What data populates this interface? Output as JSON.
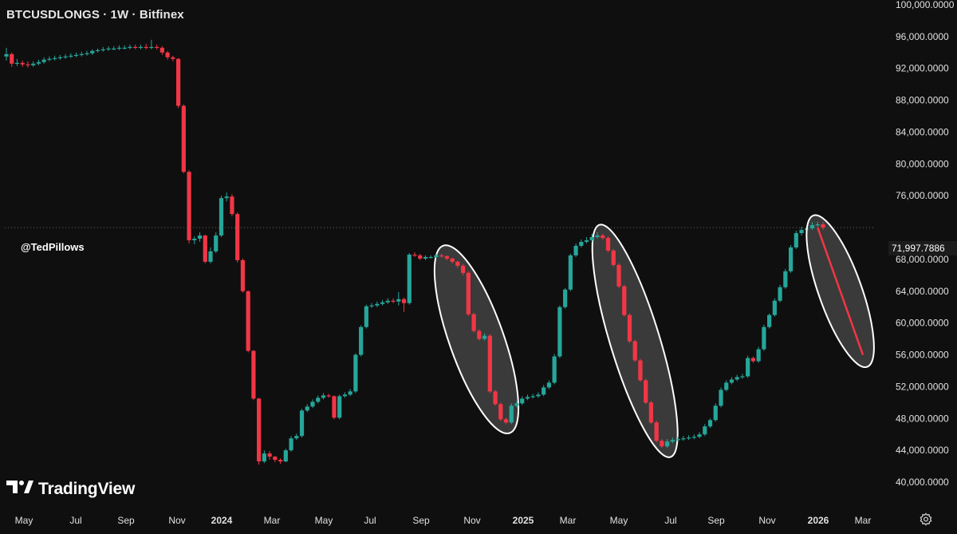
{
  "header": {
    "title": "BTCUSDLONGS · 1W · Bitfinex"
  },
  "watermark": "@TedPillows",
  "branding": {
    "logo_text": "TradingView"
  },
  "price_label": "71,997.7886",
  "colors": {
    "up": "#26a69a",
    "down": "#f23645",
    "ellipse_fill": "#4a4a4a",
    "ellipse_stroke": "#ffffff",
    "background": "#0f0f0f"
  },
  "icons": {
    "settings": "gear-icon",
    "logo": "tradingview-logo-icon"
  },
  "chart_data": {
    "type": "candlestick",
    "title": "BTCUSDLONGS · 1W · Bitfinex",
    "ylim": [
      38000,
      100000
    ],
    "y_ticks": [
      "40,000.0000",
      "44,000.0000",
      "48,000.0000",
      "52,000.0000",
      "56,000.0000",
      "60,000.0000",
      "64,000.0000",
      "68,000.0000",
      "72,000.0000",
      "76,000.0000",
      "80,000.0000",
      "84,000.0000",
      "88,000.0000",
      "92,000.0000",
      "96,000.0000",
      "100,000.0000"
    ],
    "x_ticks": [
      "May",
      "Jul",
      "Sep",
      "Nov",
      "2024",
      "Mar",
      "May",
      "Jul",
      "Sep",
      "Nov",
      "2025",
      "Mar",
      "May",
      "Jul",
      "Sep",
      "Nov",
      "2026",
      "Mar"
    ],
    "x_ticks_bold": [
      "2024",
      "2025",
      "2026"
    ],
    "last_price": 71997.7886,
    "candles": [
      {
        "o": 93500,
        "c": 93800,
        "h": 94600,
        "l": 93000
      },
      {
        "o": 93800,
        "c": 92600,
        "h": 94000,
        "l": 92200
      },
      {
        "o": 92600,
        "c": 92700,
        "h": 93200,
        "l": 92300
      },
      {
        "o": 92700,
        "c": 92500,
        "h": 93000,
        "l": 92200
      },
      {
        "o": 92500,
        "c": 92400,
        "h": 92900,
        "l": 92100
      },
      {
        "o": 92400,
        "c": 92600,
        "h": 92900,
        "l": 92200
      },
      {
        "o": 92600,
        "c": 92800,
        "h": 93100,
        "l": 92400
      },
      {
        "o": 92800,
        "c": 93100,
        "h": 93400,
        "l": 92600
      },
      {
        "o": 93100,
        "c": 93200,
        "h": 93500,
        "l": 92900
      },
      {
        "o": 93200,
        "c": 93300,
        "h": 93600,
        "l": 93000
      },
      {
        "o": 93300,
        "c": 93400,
        "h": 93700,
        "l": 93100
      },
      {
        "o": 93400,
        "c": 93500,
        "h": 93800,
        "l": 93200
      },
      {
        "o": 93500,
        "c": 93600,
        "h": 93900,
        "l": 93300
      },
      {
        "o": 93600,
        "c": 93700,
        "h": 94000,
        "l": 93400
      },
      {
        "o": 93700,
        "c": 93800,
        "h": 94100,
        "l": 93500
      },
      {
        "o": 93800,
        "c": 93900,
        "h": 94200,
        "l": 93600
      },
      {
        "o": 93900,
        "c": 94200,
        "h": 94400,
        "l": 93700
      },
      {
        "o": 94200,
        "c": 94300,
        "h": 94500,
        "l": 94000
      },
      {
        "o": 94300,
        "c": 94400,
        "h": 94700,
        "l": 94100
      },
      {
        "o": 94400,
        "c": 94500,
        "h": 94800,
        "l": 94200
      },
      {
        "o": 94500,
        "c": 94500,
        "h": 94800,
        "l": 94300
      },
      {
        "o": 94500,
        "c": 94600,
        "h": 94900,
        "l": 94300
      },
      {
        "o": 94600,
        "c": 94600,
        "h": 94900,
        "l": 94400
      },
      {
        "o": 94600,
        "c": 94700,
        "h": 95000,
        "l": 94400
      },
      {
        "o": 94700,
        "c": 94600,
        "h": 95000,
        "l": 94400
      },
      {
        "o": 94600,
        "c": 94700,
        "h": 95000,
        "l": 94400
      },
      {
        "o": 94700,
        "c": 94600,
        "h": 95100,
        "l": 94400
      },
      {
        "o": 94600,
        "c": 94700,
        "h": 95600,
        "l": 94400
      },
      {
        "o": 94700,
        "c": 94600,
        "h": 95000,
        "l": 94400
      },
      {
        "o": 94600,
        "c": 94000,
        "h": 94800,
        "l": 93700
      },
      {
        "o": 94000,
        "c": 93400,
        "h": 94200,
        "l": 93100
      },
      {
        "o": 93400,
        "c": 93200,
        "h": 93600,
        "l": 92900
      },
      {
        "o": 93200,
        "c": 87300,
        "h": 93300,
        "l": 87000
      },
      {
        "o": 87300,
        "c": 79000,
        "h": 87500,
        "l": 78800
      },
      {
        "o": 79000,
        "c": 70400,
        "h": 79200,
        "l": 70000
      },
      {
        "o": 70400,
        "c": 70600,
        "h": 70900,
        "l": 69900
      },
      {
        "o": 70600,
        "c": 71000,
        "h": 71400,
        "l": 70200
      },
      {
        "o": 71000,
        "c": 67700,
        "h": 71100,
        "l": 67500
      },
      {
        "o": 67700,
        "c": 69000,
        "h": 69500,
        "l": 67500
      },
      {
        "o": 69000,
        "c": 71000,
        "h": 71400,
        "l": 68800
      },
      {
        "o": 71000,
        "c": 75700,
        "h": 76000,
        "l": 70800
      },
      {
        "o": 75700,
        "c": 75900,
        "h": 76400,
        "l": 75300
      },
      {
        "o": 75900,
        "c": 73700,
        "h": 76200,
        "l": 73400
      },
      {
        "o": 73700,
        "c": 67900,
        "h": 73900,
        "l": 67600
      },
      {
        "o": 67900,
        "c": 64000,
        "h": 68100,
        "l": 63800
      },
      {
        "o": 64000,
        "c": 56500,
        "h": 64100,
        "l": 56300
      },
      {
        "o": 56500,
        "c": 50500,
        "h": 56600,
        "l": 50300
      },
      {
        "o": 50500,
        "c": 42600,
        "h": 50600,
        "l": 42200
      },
      {
        "o": 42600,
        "c": 43600,
        "h": 44000,
        "l": 42400
      },
      {
        "o": 43600,
        "c": 43200,
        "h": 43900,
        "l": 42800
      },
      {
        "o": 43200,
        "c": 42800,
        "h": 43300,
        "l": 42500
      },
      {
        "o": 42800,
        "c": 42600,
        "h": 43000,
        "l": 42300
      },
      {
        "o": 42600,
        "c": 44000,
        "h": 44200,
        "l": 42500
      },
      {
        "o": 44000,
        "c": 45500,
        "h": 45800,
        "l": 43800
      },
      {
        "o": 45500,
        "c": 45800,
        "h": 46100,
        "l": 45300
      },
      {
        "o": 45800,
        "c": 49000,
        "h": 49200,
        "l": 45600
      },
      {
        "o": 49000,
        "c": 49500,
        "h": 49800,
        "l": 48800
      },
      {
        "o": 49500,
        "c": 50100,
        "h": 50400,
        "l": 49300
      },
      {
        "o": 50100,
        "c": 50600,
        "h": 50900,
        "l": 49900
      },
      {
        "o": 50600,
        "c": 50900,
        "h": 51200,
        "l": 50400
      },
      {
        "o": 50900,
        "c": 50800,
        "h": 51100,
        "l": 50600
      },
      {
        "o": 50800,
        "c": 48100,
        "h": 50900,
        "l": 47900
      },
      {
        "o": 48100,
        "c": 50800,
        "h": 51000,
        "l": 47900
      },
      {
        "o": 50800,
        "c": 51000,
        "h": 51300,
        "l": 50600
      },
      {
        "o": 51000,
        "c": 51400,
        "h": 51700,
        "l": 50800
      },
      {
        "o": 51400,
        "c": 56000,
        "h": 56200,
        "l": 51200
      },
      {
        "o": 56000,
        "c": 59500,
        "h": 59700,
        "l": 55800
      },
      {
        "o": 59500,
        "c": 62100,
        "h": 62300,
        "l": 59300
      },
      {
        "o": 62100,
        "c": 62200,
        "h": 62500,
        "l": 61900
      },
      {
        "o": 62200,
        "c": 62400,
        "h": 62700,
        "l": 62000
      },
      {
        "o": 62400,
        "c": 62600,
        "h": 62900,
        "l": 62200
      },
      {
        "o": 62600,
        "c": 62800,
        "h": 63100,
        "l": 62400
      },
      {
        "o": 62800,
        "c": 62700,
        "h": 63100,
        "l": 62500
      },
      {
        "o": 62700,
        "c": 63000,
        "h": 63900,
        "l": 62200
      },
      {
        "o": 63000,
        "c": 62500,
        "h": 63200,
        "l": 61400
      },
      {
        "o": 62500,
        "c": 68600,
        "h": 68800,
        "l": 62300
      },
      {
        "o": 68600,
        "c": 68500,
        "h": 68900,
        "l": 68300
      },
      {
        "o": 68500,
        "c": 68100,
        "h": 68700,
        "l": 67900
      },
      {
        "o": 68100,
        "c": 68300,
        "h": 68500,
        "l": 67900
      },
      {
        "o": 68300,
        "c": 68300,
        "h": 68500,
        "l": 68100
      },
      {
        "o": 68300,
        "c": 68500,
        "h": 68700,
        "l": 68100
      },
      {
        "o": 68500,
        "c": 68400,
        "h": 68700,
        "l": 68200
      },
      {
        "o": 68400,
        "c": 68100,
        "h": 68500,
        "l": 67900
      },
      {
        "o": 68100,
        "c": 67700,
        "h": 68200,
        "l": 67500
      },
      {
        "o": 67700,
        "c": 67200,
        "h": 67800,
        "l": 66900
      },
      {
        "o": 67200,
        "c": 66300,
        "h": 67400,
        "l": 66000
      },
      {
        "o": 66300,
        "c": 61100,
        "h": 66500,
        "l": 60900
      },
      {
        "o": 61100,
        "c": 59000,
        "h": 61300,
        "l": 58800
      },
      {
        "o": 59000,
        "c": 58000,
        "h": 59200,
        "l": 57800
      },
      {
        "o": 58000,
        "c": 58400,
        "h": 58700,
        "l": 57800
      },
      {
        "o": 58400,
        "c": 51400,
        "h": 58600,
        "l": 51200
      },
      {
        "o": 51400,
        "c": 49800,
        "h": 51600,
        "l": 49600
      },
      {
        "o": 49800,
        "c": 47900,
        "h": 50000,
        "l": 47700
      },
      {
        "o": 47900,
        "c": 47500,
        "h": 48100,
        "l": 47300
      },
      {
        "o": 47500,
        "c": 49600,
        "h": 49900,
        "l": 47300
      },
      {
        "o": 49600,
        "c": 49900,
        "h": 50200,
        "l": 49400
      },
      {
        "o": 49900,
        "c": 50500,
        "h": 50800,
        "l": 49700
      },
      {
        "o": 50500,
        "c": 50700,
        "h": 51000,
        "l": 50300
      },
      {
        "o": 50700,
        "c": 50800,
        "h": 51100,
        "l": 50500
      },
      {
        "o": 50800,
        "c": 51000,
        "h": 51300,
        "l": 50600
      },
      {
        "o": 51000,
        "c": 51900,
        "h": 52200,
        "l": 50800
      },
      {
        "o": 51900,
        "c": 52500,
        "h": 52800,
        "l": 51700
      },
      {
        "o": 52500,
        "c": 55800,
        "h": 56100,
        "l": 52300
      },
      {
        "o": 55800,
        "c": 62000,
        "h": 62200,
        "l": 55600
      },
      {
        "o": 62000,
        "c": 64200,
        "h": 64400,
        "l": 61800
      },
      {
        "o": 64200,
        "c": 68500,
        "h": 68700,
        "l": 64000
      },
      {
        "o": 68500,
        "c": 69700,
        "h": 70000,
        "l": 68300
      },
      {
        "o": 69700,
        "c": 70200,
        "h": 70500,
        "l": 69500
      },
      {
        "o": 70200,
        "c": 70400,
        "h": 70800,
        "l": 70000
      },
      {
        "o": 70400,
        "c": 70800,
        "h": 71200,
        "l": 70200
      },
      {
        "o": 70800,
        "c": 71000,
        "h": 71400,
        "l": 70600
      },
      {
        "o": 71000,
        "c": 70700,
        "h": 71200,
        "l": 70500
      },
      {
        "o": 70700,
        "c": 69100,
        "h": 70900,
        "l": 68900
      },
      {
        "o": 69100,
        "c": 67300,
        "h": 69300,
        "l": 67100
      },
      {
        "o": 67300,
        "c": 64600,
        "h": 67500,
        "l": 64400
      },
      {
        "o": 64600,
        "c": 61000,
        "h": 64800,
        "l": 60800
      },
      {
        "o": 61000,
        "c": 57700,
        "h": 61200,
        "l": 57500
      },
      {
        "o": 57700,
        "c": 55300,
        "h": 57900,
        "l": 55100
      },
      {
        "o": 55300,
        "c": 52800,
        "h": 55500,
        "l": 52600
      },
      {
        "o": 52800,
        "c": 50000,
        "h": 53000,
        "l": 49800
      },
      {
        "o": 50000,
        "c": 47500,
        "h": 50200,
        "l": 47300
      },
      {
        "o": 47500,
        "c": 45200,
        "h": 47700,
        "l": 45000
      },
      {
        "o": 45200,
        "c": 44500,
        "h": 45400,
        "l": 44300
      },
      {
        "o": 44500,
        "c": 45100,
        "h": 45400,
        "l": 44300
      },
      {
        "o": 45100,
        "c": 45300,
        "h": 45600,
        "l": 44900
      },
      {
        "o": 45300,
        "c": 45400,
        "h": 45700,
        "l": 45100
      },
      {
        "o": 45400,
        "c": 45500,
        "h": 45800,
        "l": 45200
      },
      {
        "o": 45500,
        "c": 45600,
        "h": 45900,
        "l": 45300
      },
      {
        "o": 45600,
        "c": 45700,
        "h": 46000,
        "l": 45400
      },
      {
        "o": 45700,
        "c": 46000,
        "h": 46300,
        "l": 45500
      },
      {
        "o": 46000,
        "c": 47000,
        "h": 47300,
        "l": 45800
      },
      {
        "o": 47000,
        "c": 47800,
        "h": 48000,
        "l": 46800
      },
      {
        "o": 47800,
        "c": 49600,
        "h": 49900,
        "l": 47600
      },
      {
        "o": 49600,
        "c": 51600,
        "h": 51900,
        "l": 49400
      },
      {
        "o": 51600,
        "c": 52500,
        "h": 52800,
        "l": 51400
      },
      {
        "o": 52500,
        "c": 52900,
        "h": 53200,
        "l": 52300
      },
      {
        "o": 52900,
        "c": 53200,
        "h": 53500,
        "l": 52700
      },
      {
        "o": 53200,
        "c": 53300,
        "h": 53600,
        "l": 53000
      },
      {
        "o": 53300,
        "c": 55600,
        "h": 55900,
        "l": 53100
      },
      {
        "o": 55600,
        "c": 55200,
        "h": 55800,
        "l": 55000
      },
      {
        "o": 55200,
        "c": 56700,
        "h": 57000,
        "l": 55000
      },
      {
        "o": 56700,
        "c": 59500,
        "h": 59800,
        "l": 56500
      },
      {
        "o": 59500,
        "c": 61000,
        "h": 61200,
        "l": 59300
      },
      {
        "o": 61000,
        "c": 62800,
        "h": 63100,
        "l": 60800
      },
      {
        "o": 62800,
        "c": 64500,
        "h": 64800,
        "l": 62600
      },
      {
        "o": 64500,
        "c": 66500,
        "h": 66800,
        "l": 64300
      },
      {
        "o": 66500,
        "c": 69500,
        "h": 69800,
        "l": 66300
      },
      {
        "o": 69500,
        "c": 71300,
        "h": 71600,
        "l": 69300
      },
      {
        "o": 71300,
        "c": 71700,
        "h": 72100,
        "l": 71000
      },
      {
        "o": 71700,
        "c": 71900,
        "h": 72300,
        "l": 71400
      },
      {
        "o": 71900,
        "c": 72300,
        "h": 72700,
        "l": 71700
      },
      {
        "o": 72300,
        "c": 72400,
        "h": 72700,
        "l": 72100
      },
      {
        "o": 72400,
        "c": 71998,
        "h": 72700,
        "l": 71700
      }
    ]
  }
}
